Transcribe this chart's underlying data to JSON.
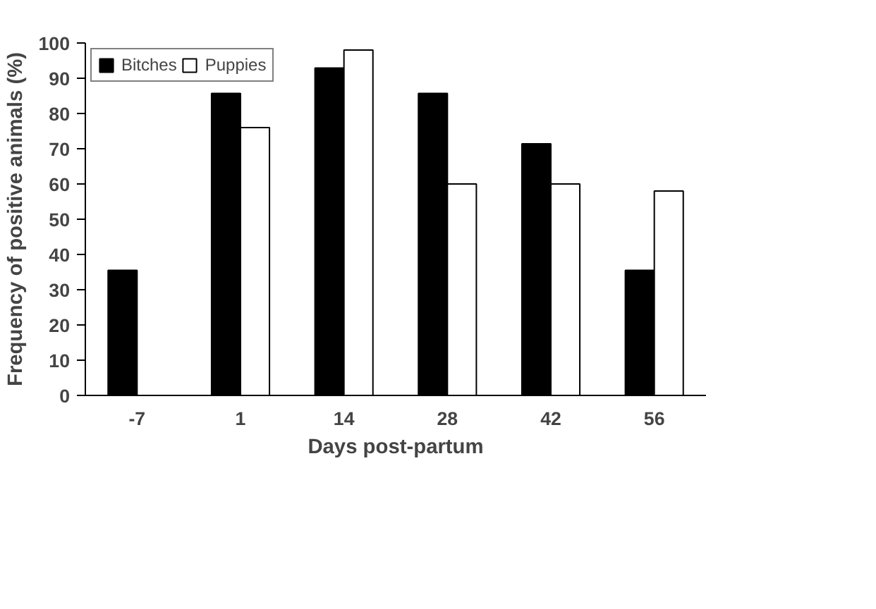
{
  "chart_data": {
    "type": "bar",
    "xlabel": "Days post-partum",
    "ylabel": "Frequency of positive animals (%)",
    "categories": [
      "-7",
      "1",
      "14",
      "28",
      "42",
      "56"
    ],
    "series": [
      {
        "name": "Bitches",
        "color": "#000000",
        "values": [
          35.5,
          85.7,
          92.9,
          85.7,
          71.4,
          35.5
        ]
      },
      {
        "name": "Puppies",
        "color": "#ffffff",
        "values": [
          null,
          76,
          98,
          60,
          60,
          58
        ]
      }
    ],
    "ylim": [
      0,
      100
    ],
    "yticks": [
      0,
      10,
      20,
      30,
      40,
      50,
      60,
      70,
      80,
      90,
      100
    ],
    "grid": false,
    "legend": "top left"
  }
}
